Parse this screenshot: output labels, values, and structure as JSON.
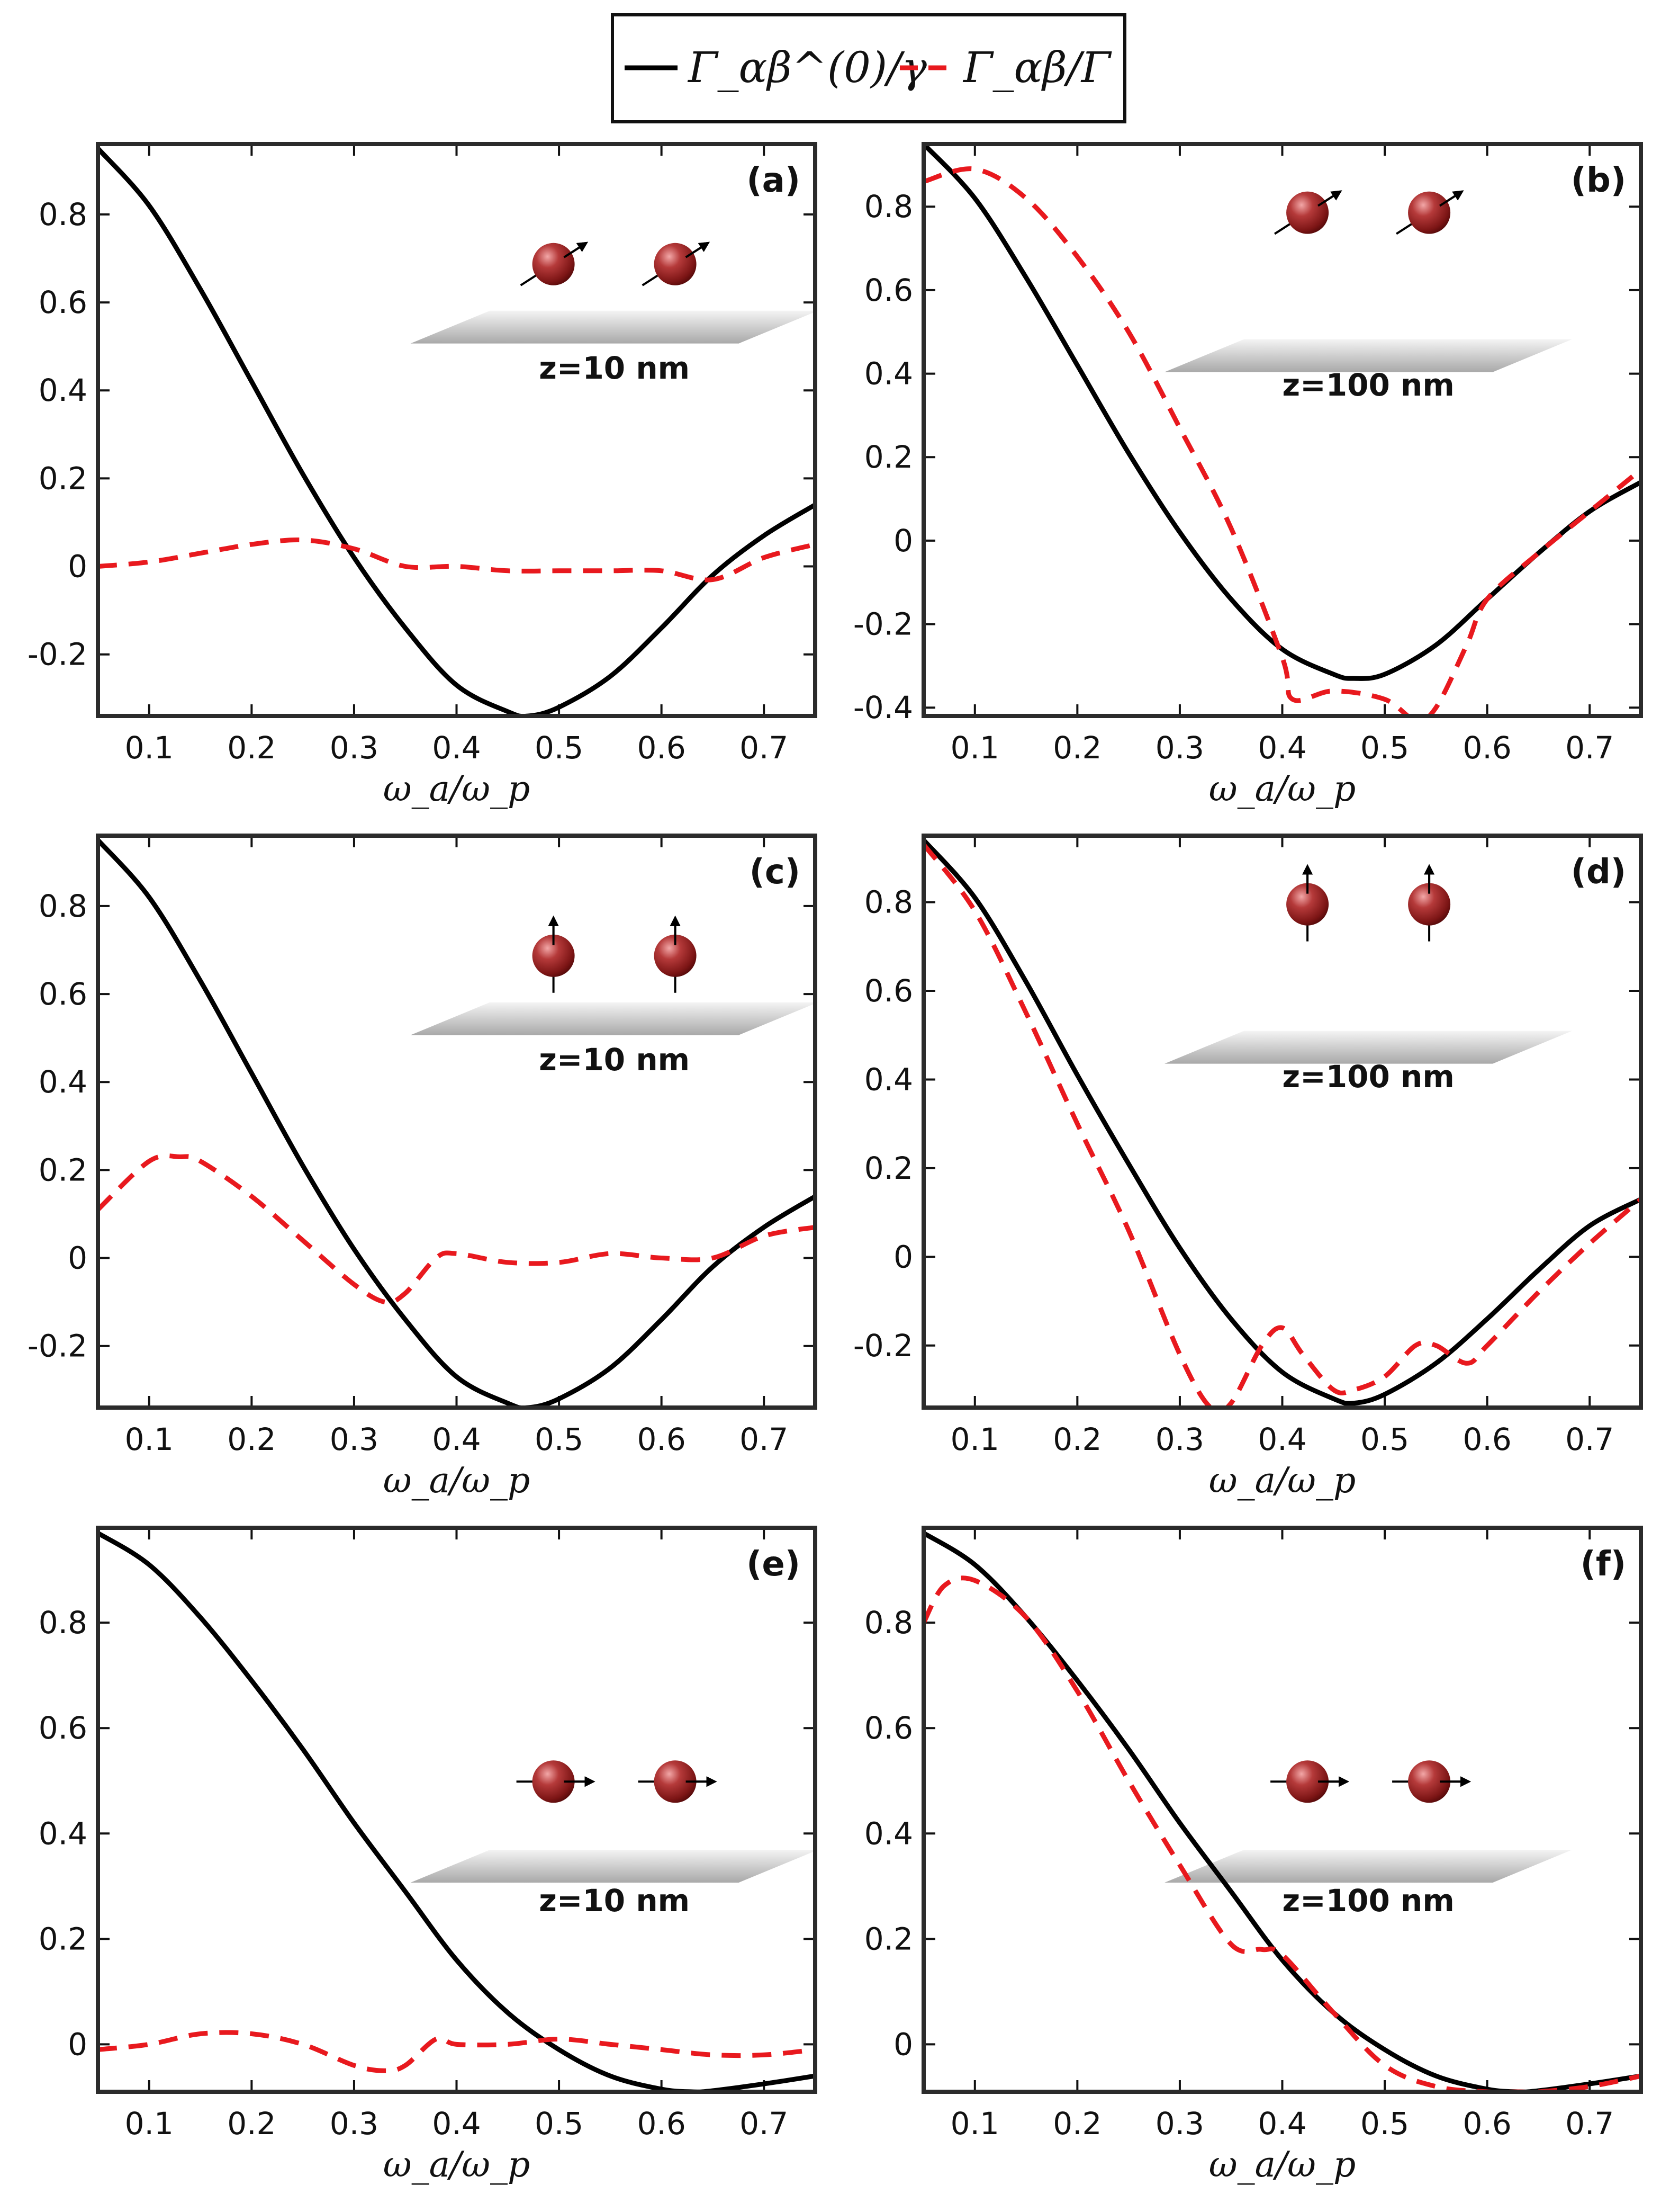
{
  "legend": {
    "position": "top-center",
    "items": [
      {
        "label": "Γ_αβ^(0)/γ",
        "color": "#000000",
        "dash": "solid"
      },
      {
        "label": "Γ_αβ/Γ",
        "color": "#e8191e",
        "dash": "dashed"
      }
    ]
  },
  "colors": {
    "black_series": "#000000",
    "red_series": "#e8191e",
    "sphere": "#8e1b1b"
  },
  "chart_data": [
    {
      "panel": "(a)",
      "type": "line",
      "inset_label": "z=10 nm",
      "dipole": "tilted",
      "xlabel": "ω_a/ω_p",
      "xlim": [
        0.05,
        0.75
      ],
      "ylim": [
        -0.34,
        0.96
      ],
      "xticks": [
        0.1,
        0.2,
        0.3,
        0.4,
        0.5,
        0.6,
        0.7
      ],
      "yticks": [
        -0.2,
        0,
        0.2,
        0.4,
        0.6,
        0.8
      ],
      "series": [
        {
          "key": "black",
          "x": [
            0.05,
            0.1,
            0.15,
            0.2,
            0.25,
            0.3,
            0.35,
            0.4,
            0.45,
            0.47,
            0.5,
            0.55,
            0.6,
            0.65,
            0.7,
            0.75
          ],
          "y": [
            0.95,
            0.82,
            0.63,
            0.42,
            0.21,
            0.02,
            -0.14,
            -0.27,
            -0.33,
            -0.34,
            -0.32,
            -0.25,
            -0.14,
            -0.02,
            0.07,
            0.14
          ]
        },
        {
          "key": "red",
          "x": [
            0.05,
            0.1,
            0.15,
            0.2,
            0.25,
            0.3,
            0.35,
            0.4,
            0.45,
            0.5,
            0.55,
            0.6,
            0.65,
            0.7,
            0.75
          ],
          "y": [
            0.0,
            0.01,
            0.03,
            0.05,
            0.06,
            0.04,
            0.0,
            0.0,
            -0.01,
            -0.01,
            -0.01,
            -0.01,
            -0.03,
            0.02,
            0.05
          ]
        }
      ]
    },
    {
      "panel": "(b)",
      "type": "line",
      "inset_label": "z=100 nm",
      "dipole": "tilted",
      "xlabel": "ω_a/ω_p",
      "xlim": [
        0.05,
        0.75
      ],
      "ylim": [
        -0.42,
        0.95
      ],
      "xticks": [
        0.1,
        0.2,
        0.3,
        0.4,
        0.5,
        0.6,
        0.7
      ],
      "yticks": [
        -0.4,
        -0.2,
        0,
        0.2,
        0.4,
        0.6,
        0.8
      ],
      "series": [
        {
          "key": "black",
          "x": [
            0.05,
            0.1,
            0.15,
            0.2,
            0.25,
            0.3,
            0.35,
            0.4,
            0.45,
            0.47,
            0.5,
            0.55,
            0.6,
            0.65,
            0.7,
            0.75
          ],
          "y": [
            0.95,
            0.82,
            0.63,
            0.42,
            0.21,
            0.02,
            -0.14,
            -0.26,
            -0.32,
            -0.33,
            -0.32,
            -0.25,
            -0.14,
            -0.03,
            0.07,
            0.14
          ]
        },
        {
          "key": "red",
          "x": [
            0.05,
            0.1,
            0.15,
            0.2,
            0.25,
            0.3,
            0.35,
            0.4,
            0.41,
            0.45,
            0.5,
            0.53,
            0.55,
            0.58,
            0.6,
            0.65,
            0.7,
            0.75
          ],
          "y": [
            0.86,
            0.89,
            0.82,
            0.68,
            0.5,
            0.27,
            0.03,
            -0.28,
            -0.38,
            -0.36,
            -0.38,
            -0.43,
            -0.4,
            -0.25,
            -0.14,
            -0.03,
            0.07,
            0.17
          ]
        }
      ]
    },
    {
      "panel": "(c)",
      "type": "line",
      "inset_label": "z=10 nm",
      "dipole": "vertical",
      "xlabel": "ω_a/ω_p",
      "xlim": [
        0.05,
        0.75
      ],
      "ylim": [
        -0.34,
        0.96
      ],
      "xticks": [
        0.1,
        0.2,
        0.3,
        0.4,
        0.5,
        0.6,
        0.7
      ],
      "yticks": [
        -0.2,
        0,
        0.2,
        0.4,
        0.6,
        0.8
      ],
      "series": [
        {
          "key": "black",
          "x": [
            0.05,
            0.1,
            0.15,
            0.2,
            0.25,
            0.3,
            0.35,
            0.4,
            0.45,
            0.47,
            0.5,
            0.55,
            0.6,
            0.65,
            0.7,
            0.75
          ],
          "y": [
            0.95,
            0.82,
            0.63,
            0.42,
            0.21,
            0.02,
            -0.14,
            -0.27,
            -0.33,
            -0.34,
            -0.32,
            -0.25,
            -0.14,
            -0.02,
            0.07,
            0.14
          ]
        },
        {
          "key": "red",
          "x": [
            0.05,
            0.1,
            0.13,
            0.15,
            0.2,
            0.25,
            0.3,
            0.33,
            0.35,
            0.38,
            0.4,
            0.45,
            0.5,
            0.55,
            0.6,
            0.65,
            0.7,
            0.75
          ],
          "y": [
            0.11,
            0.22,
            0.23,
            0.22,
            0.14,
            0.04,
            -0.06,
            -0.1,
            -0.08,
            0.0,
            0.01,
            -0.01,
            -0.01,
            0.01,
            0.0,
            0.0,
            0.05,
            0.07
          ]
        }
      ]
    },
    {
      "panel": "(d)",
      "type": "line",
      "inset_label": "z=100 nm",
      "dipole": "vertical",
      "xlabel": "ω_a/ω_p",
      "xlim": [
        0.05,
        0.75
      ],
      "ylim": [
        -0.34,
        0.95
      ],
      "xticks": [
        0.1,
        0.2,
        0.3,
        0.4,
        0.5,
        0.6,
        0.7
      ],
      "yticks": [
        -0.2,
        0,
        0.2,
        0.4,
        0.6,
        0.8
      ],
      "series": [
        {
          "key": "black",
          "x": [
            0.05,
            0.1,
            0.15,
            0.2,
            0.25,
            0.3,
            0.35,
            0.4,
            0.45,
            0.47,
            0.5,
            0.55,
            0.6,
            0.65,
            0.7,
            0.75
          ],
          "y": [
            0.94,
            0.81,
            0.62,
            0.41,
            0.21,
            0.02,
            -0.14,
            -0.26,
            -0.32,
            -0.33,
            -0.31,
            -0.24,
            -0.14,
            -0.03,
            0.07,
            0.13
          ]
        },
        {
          "key": "red",
          "x": [
            0.05,
            0.1,
            0.15,
            0.2,
            0.25,
            0.3,
            0.33,
            0.35,
            0.38,
            0.4,
            0.42,
            0.45,
            0.47,
            0.5,
            0.53,
            0.55,
            0.58,
            0.6,
            0.65,
            0.7,
            0.75
          ],
          "y": [
            0.93,
            0.78,
            0.55,
            0.3,
            0.06,
            -0.22,
            -0.34,
            -0.33,
            -0.2,
            -0.16,
            -0.22,
            -0.3,
            -0.3,
            -0.27,
            -0.2,
            -0.2,
            -0.24,
            -0.2,
            -0.08,
            0.03,
            0.13
          ]
        }
      ]
    },
    {
      "panel": "(e)",
      "type": "line",
      "inset_label": "z=10 nm",
      "dipole": "horizontal",
      "xlabel": "ω_a/ω_p",
      "xlim": [
        0.05,
        0.75
      ],
      "ylim": [
        -0.09,
        0.98
      ],
      "xticks": [
        0.1,
        0.2,
        0.3,
        0.4,
        0.5,
        0.6,
        0.7
      ],
      "yticks": [
        0,
        0.2,
        0.4,
        0.6,
        0.8
      ],
      "series": [
        {
          "key": "black",
          "x": [
            0.05,
            0.1,
            0.15,
            0.2,
            0.25,
            0.3,
            0.35,
            0.4,
            0.45,
            0.5,
            0.55,
            0.6,
            0.63,
            0.65,
            0.7,
            0.75
          ],
          "y": [
            0.97,
            0.91,
            0.81,
            0.69,
            0.56,
            0.42,
            0.29,
            0.16,
            0.06,
            -0.01,
            -0.06,
            -0.085,
            -0.09,
            -0.088,
            -0.075,
            -0.06
          ]
        },
        {
          "key": "red",
          "x": [
            0.05,
            0.1,
            0.15,
            0.2,
            0.25,
            0.3,
            0.33,
            0.35,
            0.38,
            0.4,
            0.45,
            0.5,
            0.55,
            0.6,
            0.65,
            0.7,
            0.75
          ],
          "y": [
            -0.01,
            0.0,
            0.02,
            0.02,
            0.0,
            -0.04,
            -0.05,
            -0.04,
            0.01,
            0.0,
            0.0,
            0.01,
            0.0,
            -0.01,
            -0.02,
            -0.02,
            -0.01
          ]
        }
      ]
    },
    {
      "panel": "(f)",
      "type": "line",
      "inset_label": "z=100 nm",
      "dipole": "horizontal",
      "xlabel": "ω_a/ω_p",
      "xlim": [
        0.05,
        0.75
      ],
      "ylim": [
        -0.09,
        0.98
      ],
      "xticks": [
        0.1,
        0.2,
        0.3,
        0.4,
        0.5,
        0.6,
        0.7
      ],
      "yticks": [
        0,
        0.2,
        0.4,
        0.6,
        0.8
      ],
      "series": [
        {
          "key": "black",
          "x": [
            0.05,
            0.1,
            0.15,
            0.2,
            0.25,
            0.3,
            0.35,
            0.4,
            0.45,
            0.5,
            0.55,
            0.6,
            0.63,
            0.65,
            0.7,
            0.75
          ],
          "y": [
            0.97,
            0.91,
            0.81,
            0.69,
            0.56,
            0.42,
            0.29,
            0.16,
            0.06,
            -0.01,
            -0.06,
            -0.085,
            -0.09,
            -0.088,
            -0.075,
            -0.06
          ]
        },
        {
          "key": "red",
          "x": [
            0.05,
            0.07,
            0.1,
            0.15,
            0.2,
            0.25,
            0.3,
            0.35,
            0.38,
            0.4,
            0.45,
            0.5,
            0.55,
            0.6,
            0.63,
            0.65,
            0.7,
            0.75
          ],
          "y": [
            0.8,
            0.87,
            0.88,
            0.81,
            0.67,
            0.5,
            0.34,
            0.19,
            0.18,
            0.17,
            0.06,
            -0.04,
            -0.08,
            -0.09,
            -0.09,
            -0.09,
            -0.08,
            -0.06
          ]
        }
      ]
    }
  ]
}
